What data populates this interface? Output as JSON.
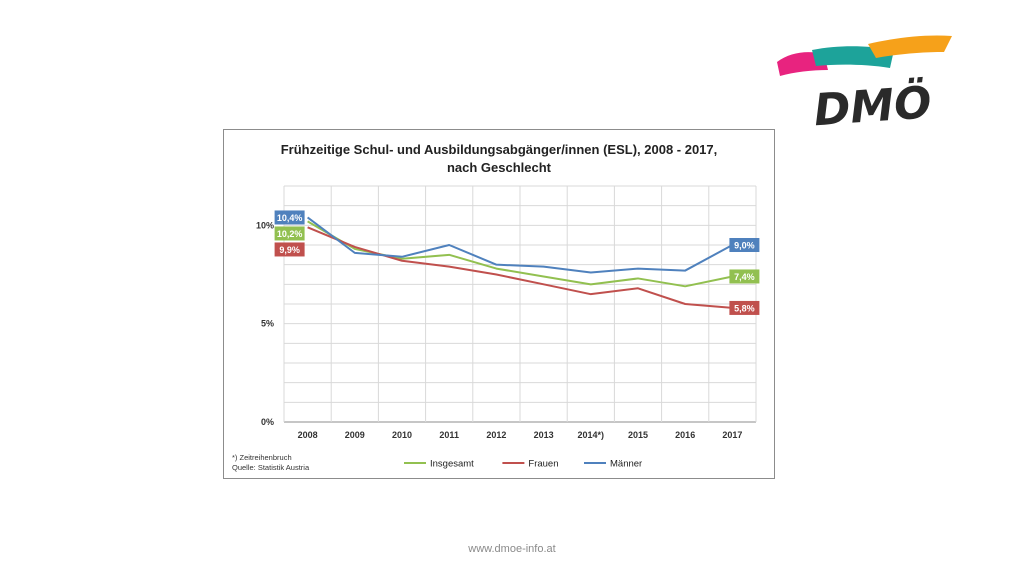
{
  "logo": {
    "text": "DMÖ",
    "colors": {
      "pink": "#e8237f",
      "teal": "#1da39a",
      "orange": "#f6a11a",
      "ink": "#2a2a2a"
    }
  },
  "chart_data": {
    "type": "line",
    "title": "Frühzeitige Schul- und Ausbildungsabgänger/innen (ESL), 2008 - 2017,",
    "subtitle": "nach Geschlecht",
    "categories": [
      "2008",
      "2009",
      "2010",
      "2011",
      "2012",
      "2013",
      "2014*)",
      "2015",
      "2016",
      "2017"
    ],
    "ylim": [
      0,
      12
    ],
    "yticks": [
      0,
      5,
      10
    ],
    "ytick_labels": [
      "0%",
      "5%",
      "10%"
    ],
    "grid": true,
    "legend": "bottom",
    "series": [
      {
        "name": "Insgesamt",
        "color": "#92c050",
        "values": [
          10.2,
          8.8,
          8.3,
          8.5,
          7.8,
          7.4,
          7.0,
          7.3,
          6.9,
          7.4
        ]
      },
      {
        "name": "Frauen",
        "color": "#c0504d",
        "values": [
          9.9,
          8.9,
          8.2,
          7.9,
          7.5,
          7.0,
          6.5,
          6.8,
          6.0,
          5.8
        ]
      },
      {
        "name": "Männer",
        "color": "#4f81bd",
        "values": [
          10.4,
          8.6,
          8.4,
          9.0,
          8.0,
          7.9,
          7.6,
          7.8,
          7.7,
          9.0
        ]
      }
    ],
    "data_labels": [
      {
        "series": "Männer",
        "index": 0,
        "text": "10,4%"
      },
      {
        "series": "Insgesamt",
        "index": 0,
        "text": "10,2%"
      },
      {
        "series": "Frauen",
        "index": 0,
        "text": "9,9%"
      },
      {
        "series": "Männer",
        "index": 9,
        "text": "9,0%"
      },
      {
        "series": "Insgesamt",
        "index": 9,
        "text": "7,4%"
      },
      {
        "series": "Frauen",
        "index": 9,
        "text": "5,8%"
      }
    ],
    "footnote": [
      "*) Zeitreihenbruch",
      "Quelle:  Statistik Austria"
    ]
  },
  "footer": {
    "url": "www.dmoe-info.at"
  }
}
